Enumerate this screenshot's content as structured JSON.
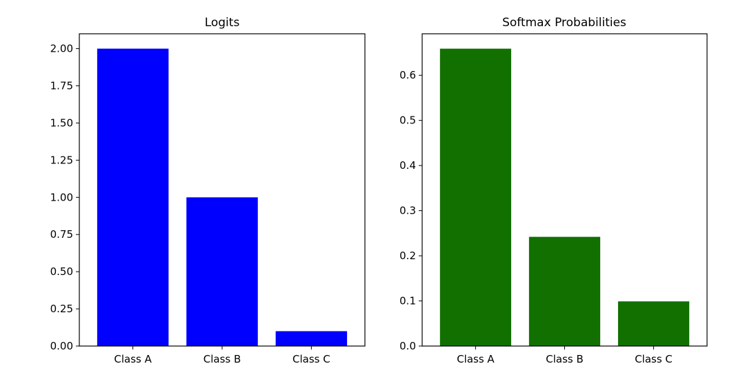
{
  "chart_data": [
    {
      "type": "bar",
      "title": "Logits",
      "xlabel": "",
      "ylabel": "",
      "categories": [
        "Class A",
        "Class B",
        "Class C"
      ],
      "values": [
        2.0,
        1.0,
        0.1
      ],
      "ylim": [
        0,
        2.1
      ],
      "yticks": [
        "0.00",
        "0.25",
        "0.50",
        "0.75",
        "1.00",
        "1.25",
        "1.50",
        "1.75",
        "2.00"
      ],
      "color": "#0000ff",
      "grid": false
    },
    {
      "type": "bar",
      "title": "Softmax Probabilities",
      "xlabel": "",
      "ylabel": "",
      "categories": [
        "Class A",
        "Class B",
        "Class C"
      ],
      "values": [
        0.659,
        0.242,
        0.099
      ],
      "ylim": [
        0,
        0.692
      ],
      "yticks": [
        "0.0",
        "0.1",
        "0.2",
        "0.3",
        "0.4",
        "0.5",
        "0.6"
      ],
      "color": "#117000",
      "grid": false
    }
  ]
}
